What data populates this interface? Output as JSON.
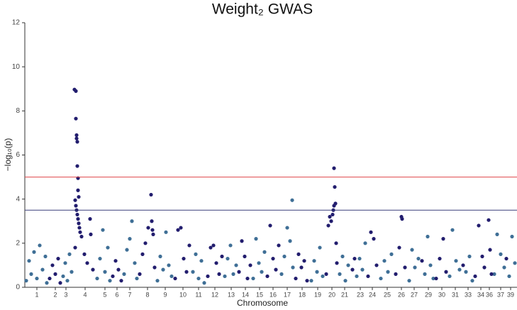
{
  "chart_data": {
    "type": "scatter",
    "title": "Weight₂ GWAS",
    "x_label": "Chromosome",
    "y_label": "−log₁₀(p)",
    "xlim": [
      0,
      694
    ],
    "ylim": [
      0,
      12
    ],
    "yticks": [
      0,
      2,
      4,
      6,
      8,
      10,
      12
    ],
    "xticks": [
      {
        "value": 17,
        "label": "1"
      },
      {
        "value": 43,
        "label": "2"
      },
      {
        "value": 58,
        "label": "3"
      },
      {
        "value": 85,
        "label": "4"
      },
      {
        "value": 113,
        "label": "5"
      },
      {
        "value": 130,
        "label": "6"
      },
      {
        "value": 148,
        "label": "7"
      },
      {
        "value": 173,
        "label": "8"
      },
      {
        "value": 198,
        "label": "9"
      },
      {
        "value": 223,
        "label": "10"
      },
      {
        "value": 245,
        "label": "11"
      },
      {
        "value": 268,
        "label": "12"
      },
      {
        "value": 291,
        "label": "13"
      },
      {
        "value": 311,
        "label": "14"
      },
      {
        "value": 331,
        "label": "15"
      },
      {
        "value": 350,
        "label": "16"
      },
      {
        "value": 370,
        "label": "17"
      },
      {
        "value": 391,
        "label": "18"
      },
      {
        "value": 413,
        "label": "19"
      },
      {
        "value": 433,
        "label": "20"
      },
      {
        "value": 451,
        "label": "21"
      },
      {
        "value": 473,
        "label": "23"
      },
      {
        "value": 490,
        "label": "24"
      },
      {
        "value": 511,
        "label": "25"
      },
      {
        "value": 531,
        "label": "26"
      },
      {
        "value": 549,
        "label": "27"
      },
      {
        "value": 569,
        "label": "29"
      },
      {
        "value": 588,
        "label": "30"
      },
      {
        "value": 607,
        "label": "31"
      },
      {
        "value": 625,
        "label": "33"
      },
      {
        "value": 643,
        "label": "34"
      },
      {
        "value": 655,
        "label": "36"
      },
      {
        "value": 671,
        "label": "37"
      },
      {
        "value": 685,
        "label": "39"
      }
    ],
    "hlines": [
      {
        "value": 5,
        "color": "#e0454a"
      },
      {
        "value": 3.5,
        "color": "#3a3f7a"
      }
    ],
    "series": [
      {
        "color": "#3f6f96",
        "x": [
          2,
          6,
          9,
          13,
          17,
          21,
          25,
          29,
          31,
          54,
          57,
          60,
          63,
          66,
          102,
          106,
          110,
          113,
          117,
          120,
          140,
          144,
          148,
          151,
          155,
          158,
          187,
          191,
          195,
          199,
          203,
          207,
          237,
          241,
          245,
          249,
          253,
          282,
          286,
          290,
          294,
          298,
          322,
          326,
          330,
          334,
          338,
          362,
          366,
          370,
          374,
          377,
          378,
          404,
          408,
          412,
          416,
          420,
          444,
          448,
          452,
          456,
          468,
          472,
          476,
          480,
          502,
          507,
          512,
          517,
          542,
          546,
          550,
          555,
          564,
          568,
          572,
          576,
          599,
          603,
          608,
          613,
          622,
          627,
          631,
          662,
          666,
          671,
          676,
          683,
          687,
          691
        ],
        "values": [
          0.3,
          1.2,
          0.6,
          1.6,
          0.4,
          1.9,
          0.8,
          1.4,
          0.2,
          0.5,
          1.1,
          0.3,
          1.5,
          0.7,
          0.4,
          1.3,
          2.6,
          0.7,
          1.8,
          0.3,
          0.6,
          1.7,
          2.2,
          3.0,
          1.1,
          0.4,
          0.3,
          1.4,
          0.8,
          2.5,
          1.0,
          0.5,
          0.7,
          1.5,
          0.4,
          1.2,
          0.2,
          0.5,
          1.3,
          1.9,
          0.6,
          1.0,
          0.4,
          2.2,
          1.1,
          0.7,
          1.6,
          0.6,
          1.4,
          2.7,
          2.1,
          3.95,
          0.9,
          0.3,
          1.2,
          0.7,
          1.8,
          0.5,
          0.6,
          1.4,
          0.3,
          1.0,
          0.5,
          1.3,
          0.8,
          2.0,
          0.4,
          1.2,
          0.7,
          1.5,
          0.3,
          1.7,
          0.9,
          1.3,
          0.6,
          2.3,
          1.0,
          0.4,
          0.5,
          2.6,
          1.2,
          0.8,
          0.7,
          1.4,
          0.3,
          0.6,
          2.4,
          1.5,
          0.9,
          0.5,
          2.3,
          1.1
        ]
      },
      {
        "color": "#221d6e",
        "x": [
          35,
          39,
          43,
          47,
          50,
          70,
          71,
          72,
          72,
          73,
          73,
          74,
          74,
          75,
          75,
          76,
          71,
          72,
          73,
          74,
          75,
          76,
          77,
          78,
          80,
          84,
          88,
          92,
          93,
          96,
          124,
          128,
          132,
          136,
          162,
          166,
          170,
          174,
          178,
          179,
          180,
          181,
          183,
          212,
          216,
          220,
          224,
          228,
          232,
          258,
          262,
          266,
          270,
          274,
          278,
          302,
          306,
          310,
          314,
          318,
          342,
          346,
          350,
          354,
          358,
          382,
          386,
          390,
          394,
          398,
          425,
          428,
          430,
          432,
          434,
          435,
          436,
          436,
          437,
          438,
          439,
          440,
          462,
          465,
          484,
          488,
          492,
          496,
          523,
          528,
          531,
          532,
          536,
          560,
          580,
          585,
          590,
          594,
          618,
          635,
          640,
          645,
          648,
          654,
          656,
          658,
          679
        ],
        "values": [
          0.4,
          1.0,
          0.6,
          1.3,
          0.2,
          8.97,
          1.8,
          8.9,
          7.65,
          6.9,
          6.75,
          6.6,
          5.5,
          4.95,
          4.4,
          4.1,
          3.95,
          3.7,
          3.5,
          3.3,
          3.1,
          2.9,
          2.7,
          2.5,
          2.3,
          1.5,
          1.1,
          3.1,
          2.4,
          0.8,
          0.5,
          1.2,
          0.8,
          0.3,
          0.6,
          1.5,
          2.0,
          2.7,
          4.2,
          3.0,
          2.6,
          2.4,
          0.9,
          0.4,
          2.6,
          2.7,
          1.3,
          0.7,
          1.9,
          0.5,
          1.8,
          1.9,
          1.1,
          0.6,
          1.4,
          0.7,
          2.1,
          1.4,
          0.4,
          1.0,
          0.5,
          2.8,
          1.3,
          0.8,
          1.9,
          0.4,
          1.5,
          0.9,
          1.2,
          0.3,
          0.6,
          2.8,
          3.2,
          3.0,
          3.3,
          3.5,
          3.7,
          5.4,
          4.55,
          3.8,
          2.0,
          1.1,
          0.8,
          1.3,
          0.5,
          2.5,
          2.2,
          1.0,
          0.6,
          1.8,
          3.2,
          3.1,
          0.9,
          1.2,
          0.4,
          1.3,
          2.2,
          0.7,
          1.0,
          0.5,
          2.8,
          1.4,
          0.9,
          3.05,
          1.7,
          0.6,
          1.3
        ]
      }
    ]
  }
}
